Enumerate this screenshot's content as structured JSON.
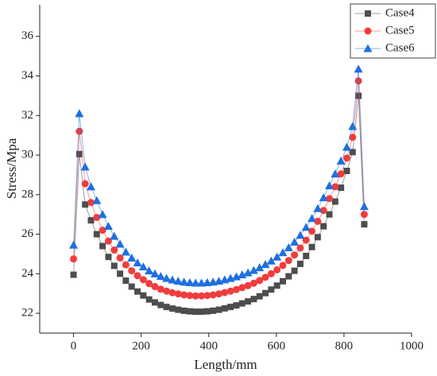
{
  "chart_data": {
    "type": "line",
    "xlabel": "Length/mm",
    "ylabel": "Stress/Mpa",
    "x": [
      0,
      17.2,
      34.4,
      51.6,
      68.8,
      86,
      103.2,
      120.4,
      137.6,
      154.8,
      172,
      189.2,
      206.4,
      223.6,
      240.8,
      258,
      275.2,
      292.4,
      309.6,
      326.8,
      344,
      361.2,
      378.4,
      395.6,
      412.8,
      430,
      447.2,
      464.4,
      481.6,
      498.8,
      516,
      533.2,
      550.4,
      567.6,
      584.8,
      602,
      619.2,
      636.4,
      653.6,
      670.8,
      688,
      705.2,
      722.4,
      739.6,
      756.8,
      774,
      791.2,
      808.4,
      825.6,
      842.8,
      860
    ],
    "series": [
      {
        "name": "Case4",
        "color": "#4d4d4d",
        "marker": "square",
        "values": [
          23.95,
          30.05,
          27.5,
          26.7,
          26.0,
          25.4,
          24.85,
          24.4,
          24.0,
          23.65,
          23.35,
          23.1,
          22.9,
          22.7,
          22.55,
          22.42,
          22.32,
          22.24,
          22.18,
          22.13,
          22.1,
          22.08,
          22.08,
          22.1,
          22.13,
          22.18,
          22.25,
          22.32,
          22.4,
          22.5,
          22.6,
          22.72,
          22.86,
          23.02,
          23.2,
          23.4,
          23.62,
          23.87,
          24.15,
          24.5,
          24.9,
          25.35,
          25.85,
          26.4,
          27.0,
          27.65,
          28.35,
          29.2,
          30.15,
          33.0,
          26.5
        ]
      },
      {
        "name": "Case5",
        "color": "#f03c3c",
        "marker": "circle",
        "values": [
          24.75,
          31.2,
          28.55,
          27.6,
          26.85,
          26.2,
          25.65,
          25.2,
          24.8,
          24.45,
          24.15,
          23.9,
          23.7,
          23.5,
          23.35,
          23.22,
          23.12,
          23.04,
          22.98,
          22.93,
          22.9,
          22.88,
          22.88,
          22.9,
          22.93,
          22.98,
          23.05,
          23.12,
          23.2,
          23.3,
          23.4,
          23.52,
          23.66,
          23.82,
          24.0,
          24.2,
          24.42,
          24.67,
          24.95,
          25.3,
          25.7,
          26.15,
          26.65,
          27.2,
          27.8,
          28.4,
          29.05,
          29.85,
          30.9,
          33.75,
          27.0
        ]
      },
      {
        "name": "Case6",
        "color": "#1f6fe0",
        "marker": "triangle",
        "values": [
          25.45,
          32.1,
          29.4,
          28.4,
          27.7,
          27.0,
          26.4,
          25.9,
          25.5,
          25.1,
          24.8,
          24.55,
          24.35,
          24.15,
          24.0,
          23.87,
          23.77,
          23.69,
          23.63,
          23.58,
          23.55,
          23.53,
          23.53,
          23.55,
          23.58,
          23.63,
          23.7,
          23.77,
          23.85,
          23.95,
          24.05,
          24.17,
          24.31,
          24.47,
          24.65,
          24.85,
          25.07,
          25.32,
          25.6,
          25.95,
          26.35,
          26.8,
          27.3,
          27.85,
          28.45,
          29.05,
          29.7,
          30.4,
          31.45,
          34.35,
          27.4
        ]
      }
    ],
    "xlim": [
      -100,
      1000
    ],
    "xticks": [
      0,
      200,
      400,
      600,
      800,
      1000
    ],
    "ylim": [
      21,
      37.6
    ],
    "yticks": [
      22,
      24,
      26,
      28,
      30,
      32,
      34,
      36
    ],
    "grid": false,
    "legend": "upper right"
  }
}
